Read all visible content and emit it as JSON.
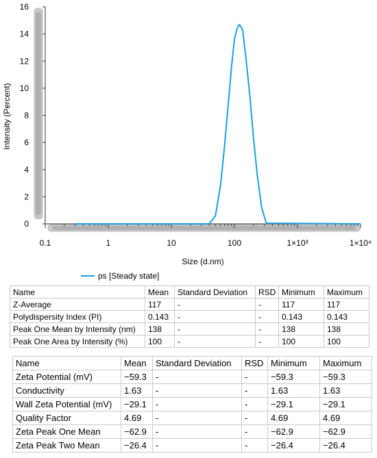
{
  "chart_data": {
    "type": "line",
    "xscale": "log",
    "xlabel": "Size (d.nm)",
    "ylabel": "Intensity (Percent)",
    "xlim": [
      0.1,
      10000
    ],
    "ylim": [
      0,
      16
    ],
    "xticks": [
      "0.1",
      "1",
      "10",
      "100",
      "1×10³",
      "1×10⁴"
    ],
    "yticks": [
      "0",
      "2",
      "4",
      "6",
      "8",
      "10",
      "12",
      "14",
      "16"
    ],
    "legend_position": "bottom",
    "series": [
      {
        "name": "ps [Steady state]",
        "color": "#1a9ee0",
        "points": [
          [
            0.3,
            0
          ],
          [
            40,
            0
          ],
          [
            50,
            0.6
          ],
          [
            60,
            2.8
          ],
          [
            70,
            5.8
          ],
          [
            80,
            8.9
          ],
          [
            90,
            11.6
          ],
          [
            100,
            13.6
          ],
          [
            110,
            14.4
          ],
          [
            120,
            14.7
          ],
          [
            135,
            14.3
          ],
          [
            150,
            12.5
          ],
          [
            175,
            9.5
          ],
          [
            200,
            6.4
          ],
          [
            230,
            3.6
          ],
          [
            270,
            1.2
          ],
          [
            320,
            0.05
          ],
          [
            10000,
            0
          ]
        ]
      }
    ]
  },
  "table1": {
    "headers": [
      "Name",
      "Mean",
      "Standard Deviation",
      "RSD",
      "Minimum",
      "Maximum"
    ],
    "rows": [
      [
        "Z-Average",
        "117",
        "-",
        "-",
        "117",
        "117"
      ],
      [
        "Polydispersity Index (PI)",
        "0.143",
        "-",
        "-",
        "0.143",
        "0.143"
      ],
      [
        "Peak One Mean by Intensity (nm)",
        "138",
        "-",
        "-",
        "138",
        "138"
      ],
      [
        "Peak One Area by Intensity (%)",
        "100",
        "-",
        "-",
        "100",
        "100"
      ]
    ]
  },
  "table2": {
    "headers": [
      "Name",
      "Mean",
      "Standard Deviation",
      "RSD",
      "Minimum",
      "Maximum"
    ],
    "rows": [
      [
        "Zeta Potential (mV)",
        "−59.3",
        "-",
        "-",
        "−59.3",
        "−59.3"
      ],
      [
        "Conductivity",
        "1.63",
        "-",
        "-",
        "1.63",
        "1.63"
      ],
      [
        "Wall Zeta Potential (mV)",
        "−29.1",
        "-",
        "-",
        "−29.1",
        "−29.1"
      ],
      [
        "Quality Factor",
        "4.69",
        "-",
        "-",
        "4.69",
        "4.69"
      ],
      [
        "Zeta Peak One Mean",
        "−62.9",
        "-",
        "-",
        "−62.9",
        "−62.9"
      ],
      [
        "Zeta Peak Two Mean",
        "−26.4",
        "-",
        "-",
        "−26.4",
        "−26.4"
      ]
    ]
  }
}
